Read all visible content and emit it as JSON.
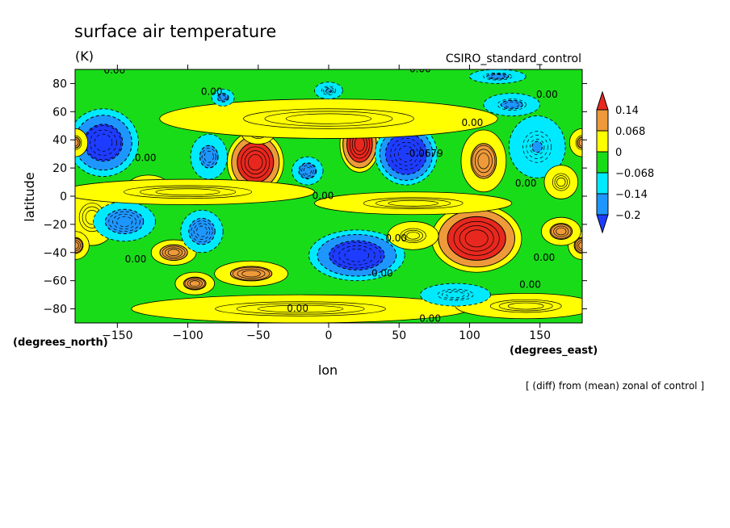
{
  "chart_data": {
    "type": "contour",
    "title": "surface air temperature",
    "units": "(K)",
    "dataset": "CSIRO_standard_control",
    "xlabel": "lon",
    "ylabel": "latitude",
    "x_units": "(degrees_east)",
    "y_units": "(degrees_north)",
    "footnote": "[ (diff) from (mean) zonal of control ]",
    "xlim": [
      -180,
      180
    ],
    "ylim": [
      -90,
      90
    ],
    "x_ticks": [
      -150,
      -100,
      -50,
      0,
      50,
      100,
      150
    ],
    "y_ticks": [
      80,
      60,
      40,
      20,
      0,
      -20,
      -40,
      -60,
      -80
    ],
    "contour_labels": [
      {
        "text": "0.00",
        "lon": -152,
        "lat": 87
      },
      {
        "text": "0.00",
        "lon": 65,
        "lat": 88
      },
      {
        "text": "0.00",
        "lon": -83,
        "lat": 72
      },
      {
        "text": "0.00",
        "lon": 155,
        "lat": 70
      },
      {
        "text": "0.00",
        "lon": 102,
        "lat": 50
      },
      {
        "text": "-0.0679",
        "lon": 68,
        "lat": 28
      },
      {
        "text": "0.00",
        "lon": -130,
        "lat": 25
      },
      {
        "text": "0.00",
        "lon": 140,
        "lat": 7
      },
      {
        "text": "0.00",
        "lon": -4,
        "lat": -2
      },
      {
        "text": "0.00",
        "lon": 48,
        "lat": -32
      },
      {
        "text": "0.00",
        "lon": -137,
        "lat": -47
      },
      {
        "text": "0.00",
        "lon": 38,
        "lat": -57
      },
      {
        "text": "0.00",
        "lon": 153,
        "lat": -46
      },
      {
        "text": "0.00",
        "lon": 143,
        "lat": -65
      },
      {
        "text": "0.00",
        "lon": -22,
        "lat": -82
      },
      {
        "text": "0.00",
        "lon": 72,
        "lat": -89
      }
    ],
    "colorbar": {
      "levels": [
        0.14,
        0.068,
        0,
        -0.068,
        -0.14,
        -0.2
      ],
      "labels": [
        "0.14",
        "0.068",
        "0",
        "−0.068",
        "−0.14",
        "−0.2"
      ],
      "colors": [
        "#e8281e",
        "#ee9a3a",
        "#ffff00",
        "#19dc19",
        "#00eaff",
        "#1e96ff",
        "#1e3cff"
      ]
    },
    "base_color": "#19dc19",
    "features": [
      {
        "lon": -160,
        "lat": 38,
        "w": 25,
        "h": 24,
        "a": -0.2
      },
      {
        "lon": -168,
        "lat": -15,
        "w": 18,
        "h": 20,
        "a": 0.06
      },
      {
        "lon": -180,
        "lat": -35,
        "w": 10,
        "h": 10,
        "a": 0.1
      },
      {
        "lon": 180,
        "lat": -35,
        "w": 10,
        "h": 10,
        "a": 0.1
      },
      {
        "lon": -180,
        "lat": 38,
        "w": 9,
        "h": 10,
        "a": 0.08
      },
      {
        "lon": 180,
        "lat": 38,
        "w": 9,
        "h": 10,
        "a": 0.08
      },
      {
        "lon": -145,
        "lat": -18,
        "w": 22,
        "h": 14,
        "a": -0.11
      },
      {
        "lon": -128,
        "lat": 5,
        "w": 16,
        "h": 10,
        "a": 0.04
      },
      {
        "lon": -110,
        "lat": -40,
        "w": 16,
        "h": 9,
        "a": 0.11
      },
      {
        "lon": -95,
        "lat": -62,
        "w": 14,
        "h": 8,
        "a": 0.1
      },
      {
        "lon": -85,
        "lat": 28,
        "w": 13,
        "h": 16,
        "a": -0.09
      },
      {
        "lon": -90,
        "lat": -25,
        "w": 15,
        "h": 15,
        "a": -0.11
      },
      {
        "lon": -52,
        "lat": 24,
        "w": 20,
        "h": 22,
        "a": 0.24
      },
      {
        "lon": -55,
        "lat": -55,
        "w": 26,
        "h": 9,
        "a": 0.1
      },
      {
        "lon": -50,
        "lat": 45,
        "w": 12,
        "h": 8,
        "a": 0.06
      },
      {
        "lon": -15,
        "lat": 18,
        "w": 11,
        "h": 10,
        "a": -0.1
      },
      {
        "lon": 22,
        "lat": 37,
        "w": 14,
        "h": 20,
        "a": 0.24
      },
      {
        "lon": 20,
        "lat": -42,
        "w": 34,
        "h": 18,
        "a": -0.21
      },
      {
        "lon": 55,
        "lat": 30,
        "w": 22,
        "h": 22,
        "a": -0.25
      },
      {
        "lon": 110,
        "lat": 25,
        "w": 16,
        "h": 22,
        "a": 0.1
      },
      {
        "lon": 148,
        "lat": 35,
        "w": 20,
        "h": 22,
        "a": -0.07
      },
      {
        "lon": 105,
        "lat": -30,
        "w": 32,
        "h": 24,
        "a": 0.24
      },
      {
        "lon": 165,
        "lat": -25,
        "w": 14,
        "h": 10,
        "a": 0.1
      },
      {
        "lon": 165,
        "lat": 10,
        "w": 12,
        "h": 12,
        "a": 0.06
      },
      {
        "lon": 60,
        "lat": -28,
        "w": 18,
        "h": 10,
        "a": 0.05
      },
      {
        "lon": 0,
        "lat": 55,
        "w": 120,
        "h": 14,
        "a": 0.06
      },
      {
        "lon": -100,
        "lat": 3,
        "w": 90,
        "h": 9,
        "a": 0.04
      },
      {
        "lon": 60,
        "lat": -5,
        "w": 70,
        "h": 8,
        "a": 0.04
      },
      {
        "lon": -20,
        "lat": -80,
        "w": 120,
        "h": 10,
        "a": 0.04
      },
      {
        "lon": 140,
        "lat": -78,
        "w": 50,
        "h": 9,
        "a": 0.05
      },
      {
        "lon": 130,
        "lat": 65,
        "w": 20,
        "h": 8,
        "a": -0.08
      },
      {
        "lon": 120,
        "lat": 85,
        "w": 20,
        "h": 5,
        "a": -0.08
      },
      {
        "lon": -75,
        "lat": 70,
        "w": 8,
        "h": 6,
        "a": -0.09
      },
      {
        "lon": 0,
        "lat": 75,
        "w": 10,
        "h": 6,
        "a": -0.07
      },
      {
        "lon": 90,
        "lat": -70,
        "w": 25,
        "h": 8,
        "a": -0.05
      }
    ]
  }
}
